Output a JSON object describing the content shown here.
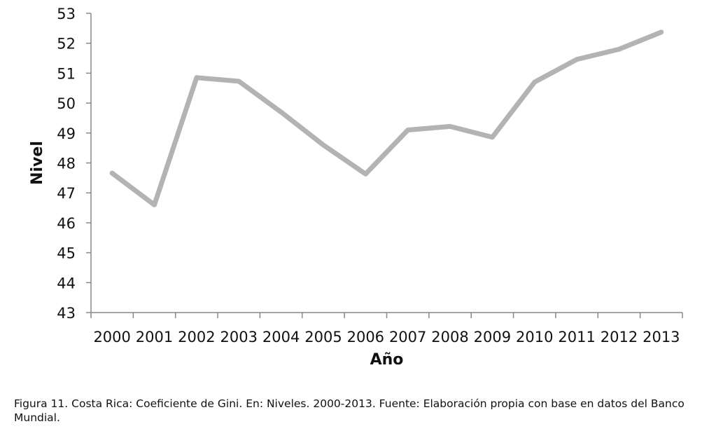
{
  "chart_data": {
    "type": "line",
    "title": "",
    "xlabel": "Año",
    "ylabel": "Nivel",
    "categories": [
      "2000",
      "2001",
      "2002",
      "2003",
      "2004",
      "2005",
      "2006",
      "2007",
      "2008",
      "2009",
      "2010",
      "2011",
      "2012",
      "2013"
    ],
    "series": [
      {
        "name": "Coeficiente de Gini",
        "values": [
          47.66,
          46.6,
          50.85,
          50.73,
          49.7,
          48.6,
          47.63,
          49.1,
          49.22,
          48.86,
          50.7,
          51.46,
          51.8,
          52.37
        ],
        "color": "#b3b3b3"
      }
    ],
    "ylim": [
      43,
      53
    ],
    "yticks": [
      43,
      44,
      45,
      46,
      47,
      48,
      49,
      50,
      51,
      52,
      53
    ],
    "grid": false,
    "legend": "none"
  },
  "caption": "Figura 11. Costa Rica: Coeficiente de Gini. En: Niveles. 2000-2013. Fuente: Elaboración propia con base en datos del Banco Mundial."
}
